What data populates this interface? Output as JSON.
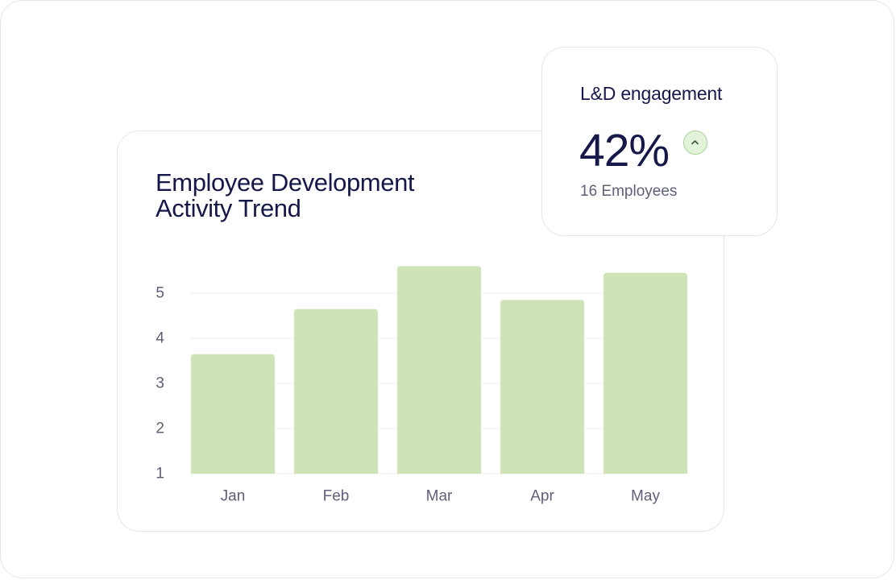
{
  "kpi": {
    "title": "L&D engagement",
    "value": "42%",
    "subtitle": "16 Employees",
    "trend_icon": "chevron-up-icon"
  },
  "chart_data": {
    "type": "bar",
    "title": "Employee Development Activity Trend",
    "categories": [
      "Jan",
      "Feb",
      "Mar",
      "Apr",
      "May"
    ],
    "values": [
      3.65,
      4.65,
      5.6,
      4.85,
      5.45
    ],
    "yticks": [
      1,
      2,
      3,
      4,
      5
    ],
    "ylim": [
      1,
      5.7
    ],
    "xlabel": "",
    "ylabel": "",
    "grid": true,
    "bar_color": "#cfe4b6",
    "grid_color": "#ebecef"
  },
  "colors": {
    "text_primary": "#16184a",
    "text_secondary": "#5e6078",
    "accent_green": "#a8d49a"
  }
}
